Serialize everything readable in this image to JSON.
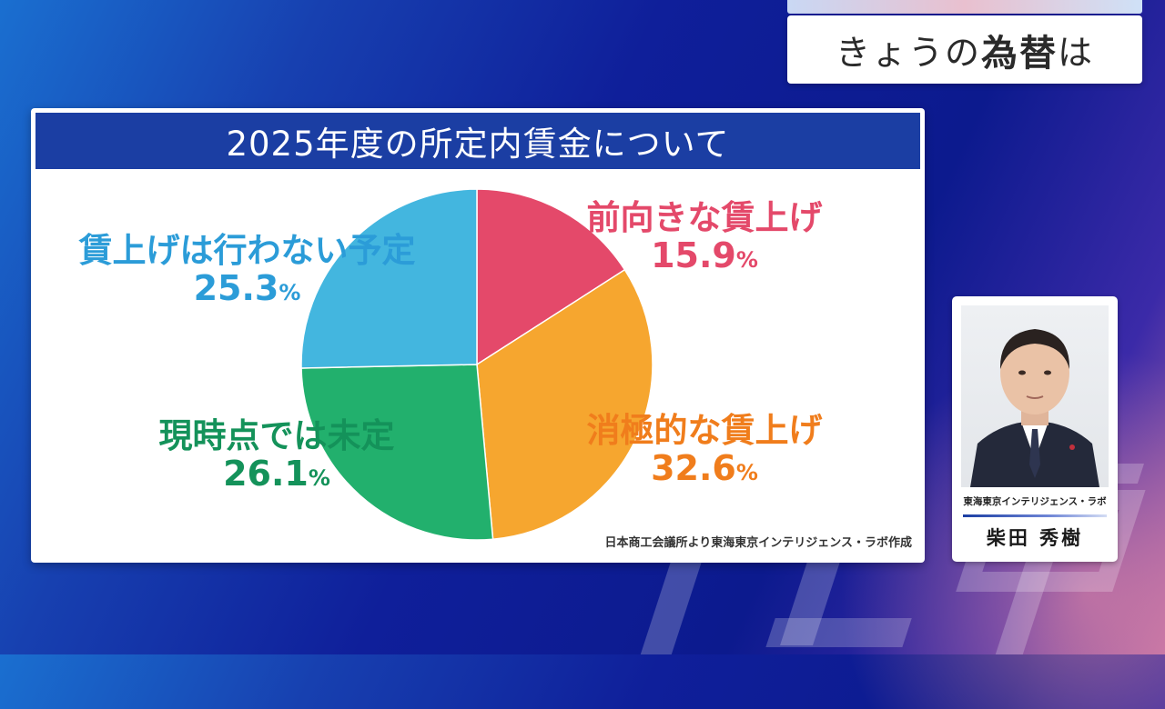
{
  "topic": {
    "prefix": "きょうの",
    "emphasis": "為替",
    "suffix": "は"
  },
  "panel": {
    "title": "2025年度の所定内賃金について",
    "source": "日本商工会議所より東海東京インテリジェンス・ラボ作成"
  },
  "chart_data": {
    "type": "pie",
    "title": "2025年度の所定内賃金について",
    "unit": "%",
    "slices": [
      {
        "label": "前向きな賃上げ",
        "value": 15.9,
        "display": "15.9",
        "color": "#e4496a",
        "text_color": "#e4496a"
      },
      {
        "label": "消極的な賃上げ",
        "value": 32.6,
        "display": "32.6",
        "color": "#f6a62f",
        "text_color": "#f07d1c"
      },
      {
        "label": "現時点では未定",
        "value": 26.1,
        "display": "26.1",
        "color": "#22b06d",
        "text_color": "#14925a"
      },
      {
        "label": "賃上げは行わない予定",
        "value": 25.3,
        "display": "25.3",
        "color": "#43b6df",
        "text_color": "#2b9cd8"
      }
    ],
    "start_angle": "12 o'clock",
    "direction": "clockwise"
  },
  "speaker": {
    "affiliation": "東海東京インテリジェンス・ラボ",
    "name": "柴田 秀樹"
  },
  "watermark": {
    "text": "テレ東"
  }
}
